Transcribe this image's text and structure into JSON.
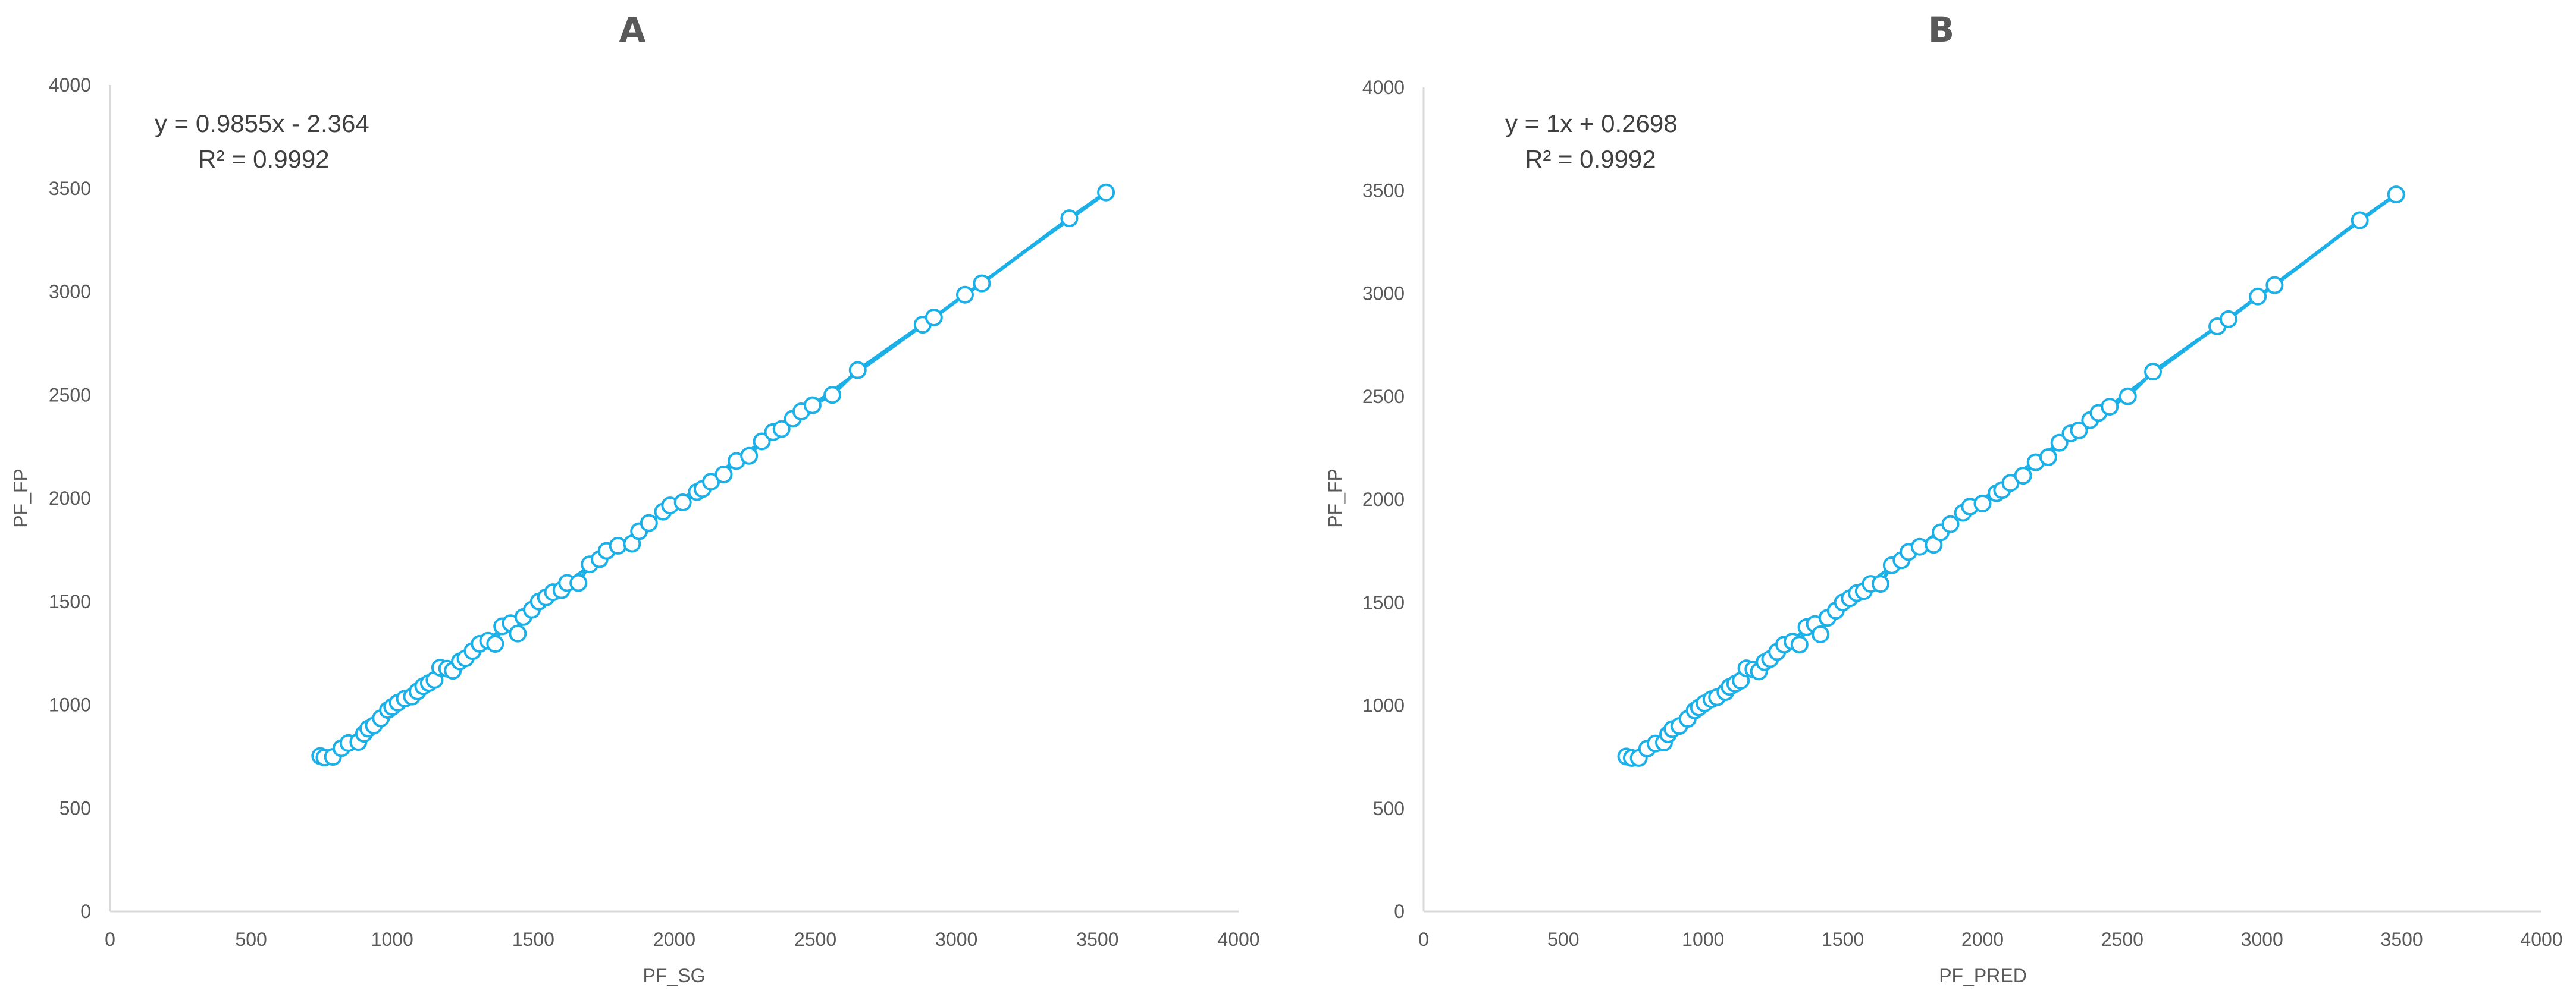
{
  "chart_data": [
    {
      "type": "scatter",
      "title": "A",
      "xlabel": "PF_SG",
      "ylabel": "PF_FP",
      "xlim": [
        0,
        4000
      ],
      "ylim": [
        0,
        4000
      ],
      "xticks": [
        "0",
        "500",
        "1000",
        "1500",
        "2000",
        "2500",
        "3000",
        "3500",
        "4000"
      ],
      "yticks": [
        "0",
        "500",
        "1000",
        "1500",
        "2000",
        "2500",
        "3000",
        "3500",
        "4000"
      ],
      "grid": false,
      "marker_color": "#1bb0e8",
      "trendline": {
        "slope": 0.9855,
        "intercept": -2.364,
        "x_range": [
          745,
          3530
        ]
      },
      "equation": "y = 0.9855x - 2.364",
      "r2_label": "R² = 0.9992",
      "points": [
        [
          745,
          752
        ],
        [
          760,
          745
        ],
        [
          790,
          748
        ],
        [
          820,
          790
        ],
        [
          845,
          815
        ],
        [
          880,
          820
        ],
        [
          900,
          860
        ],
        [
          915,
          885
        ],
        [
          935,
          900
        ],
        [
          960,
          935
        ],
        [
          985,
          975
        ],
        [
          1000,
          990
        ],
        [
          1020,
          1010
        ],
        [
          1045,
          1030
        ],
        [
          1070,
          1040
        ],
        [
          1090,
          1065
        ],
        [
          1110,
          1090
        ],
        [
          1130,
          1105
        ],
        [
          1150,
          1120
        ],
        [
          1170,
          1180
        ],
        [
          1195,
          1175
        ],
        [
          1215,
          1165
        ],
        [
          1240,
          1210
        ],
        [
          1260,
          1225
        ],
        [
          1285,
          1260
        ],
        [
          1310,
          1295
        ],
        [
          1340,
          1310
        ],
        [
          1365,
          1295
        ],
        [
          1390,
          1380
        ],
        [
          1420,
          1395
        ],
        [
          1445,
          1345
        ],
        [
          1465,
          1425
        ],
        [
          1495,
          1460
        ],
        [
          1520,
          1500
        ],
        [
          1545,
          1520
        ],
        [
          1570,
          1545
        ],
        [
          1600,
          1555
        ],
        [
          1620,
          1590
        ],
        [
          1660,
          1590
        ],
        [
          1700,
          1680
        ],
        [
          1735,
          1705
        ],
        [
          1760,
          1745
        ],
        [
          1800,
          1770
        ],
        [
          1850,
          1780
        ],
        [
          1875,
          1840
        ],
        [
          1910,
          1880
        ],
        [
          1960,
          1935
        ],
        [
          1985,
          1965
        ],
        [
          2030,
          1980
        ],
        [
          2080,
          2030
        ],
        [
          2100,
          2045
        ],
        [
          2130,
          2080
        ],
        [
          2175,
          2115
        ],
        [
          2220,
          2180
        ],
        [
          2265,
          2205
        ],
        [
          2310,
          2275
        ],
        [
          2350,
          2320
        ],
        [
          2380,
          2335
        ],
        [
          2420,
          2385
        ],
        [
          2450,
          2420
        ],
        [
          2490,
          2450
        ],
        [
          2560,
          2500
        ],
        [
          2650,
          2620
        ],
        [
          2880,
          2840
        ],
        [
          2920,
          2875
        ],
        [
          3030,
          2985
        ],
        [
          3090,
          3040
        ],
        [
          3400,
          3355
        ],
        [
          3530,
          3480
        ]
      ]
    },
    {
      "type": "scatter",
      "title": "B",
      "xlabel": "PF_PRED",
      "ylabel": "PF_FP",
      "xlim": [
        0,
        4000
      ],
      "ylim": [
        0,
        4000
      ],
      "xticks": [
        "0",
        "500",
        "1000",
        "1500",
        "2000",
        "2500",
        "3000",
        "3500",
        "4000"
      ],
      "yticks": [
        "0",
        "500",
        "1000",
        "1500",
        "2000",
        "2500",
        "3000",
        "3500",
        "4000"
      ],
      "grid": false,
      "marker_color": "#1bb0e8",
      "trendline": {
        "slope": 1,
        "intercept": 0.2698,
        "x_range": [
          725,
          3480
        ]
      },
      "equation": "y = 1x + 0.2698",
      "r2_label": "R² = 0.9992",
      "points": [
        [
          725,
          752
        ],
        [
          745,
          745
        ],
        [
          770,
          745
        ],
        [
          800,
          790
        ],
        [
          830,
          815
        ],
        [
          860,
          820
        ],
        [
          875,
          860
        ],
        [
          890,
          885
        ],
        [
          915,
          900
        ],
        [
          945,
          935
        ],
        [
          970,
          975
        ],
        [
          985,
          990
        ],
        [
          1005,
          1010
        ],
        [
          1030,
          1030
        ],
        [
          1050,
          1040
        ],
        [
          1080,
          1065
        ],
        [
          1095,
          1090
        ],
        [
          1115,
          1105
        ],
        [
          1135,
          1120
        ],
        [
          1155,
          1180
        ],
        [
          1180,
          1175
        ],
        [
          1200,
          1165
        ],
        [
          1220,
          1210
        ],
        [
          1240,
          1225
        ],
        [
          1265,
          1260
        ],
        [
          1290,
          1295
        ],
        [
          1320,
          1310
        ],
        [
          1345,
          1295
        ],
        [
          1370,
          1380
        ],
        [
          1400,
          1395
        ],
        [
          1420,
          1345
        ],
        [
          1445,
          1425
        ],
        [
          1475,
          1460
        ],
        [
          1500,
          1500
        ],
        [
          1525,
          1520
        ],
        [
          1550,
          1545
        ],
        [
          1575,
          1555
        ],
        [
          1600,
          1590
        ],
        [
          1635,
          1590
        ],
        [
          1675,
          1680
        ],
        [
          1710,
          1705
        ],
        [
          1735,
          1745
        ],
        [
          1775,
          1770
        ],
        [
          1825,
          1780
        ],
        [
          1850,
          1840
        ],
        [
          1885,
          1880
        ],
        [
          1930,
          1935
        ],
        [
          1955,
          1965
        ],
        [
          2000,
          1980
        ],
        [
          2050,
          2030
        ],
        [
          2070,
          2045
        ],
        [
          2100,
          2080
        ],
        [
          2145,
          2115
        ],
        [
          2190,
          2180
        ],
        [
          2235,
          2205
        ],
        [
          2275,
          2275
        ],
        [
          2315,
          2320
        ],
        [
          2345,
          2335
        ],
        [
          2385,
          2385
        ],
        [
          2415,
          2420
        ],
        [
          2455,
          2450
        ],
        [
          2520,
          2500
        ],
        [
          2610,
          2620
        ],
        [
          2840,
          2840
        ],
        [
          2880,
          2875
        ],
        [
          2985,
          2985
        ],
        [
          3045,
          3040
        ],
        [
          3350,
          3355
        ],
        [
          3480,
          3480
        ]
      ]
    }
  ]
}
